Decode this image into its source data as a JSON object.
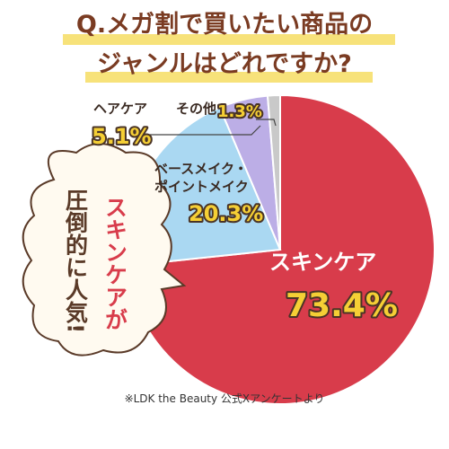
{
  "chart_data": {
    "type": "pie",
    "title": [
      "Q.メガ割で買いたい商品の",
      "ジャンルはどれですか?"
    ],
    "categories": [
      "スキンケア",
      "ベースメイク・ポイントメイク",
      "ヘアケア",
      "その他"
    ],
    "values": [
      73.4,
      20.3,
      5.1,
      1.3
    ],
    "value_labels": [
      "73.4%",
      "20.3%",
      "5.1%",
      "1.3%"
    ],
    "colors": [
      "#d83c4b",
      "#aad8f2",
      "#bcaee6",
      "#c9c9c9"
    ],
    "callout": [
      "スキンケアが",
      "圧倒的に人気!"
    ],
    "source": "※LDK the Beauty 公式Xアンケートより"
  }
}
